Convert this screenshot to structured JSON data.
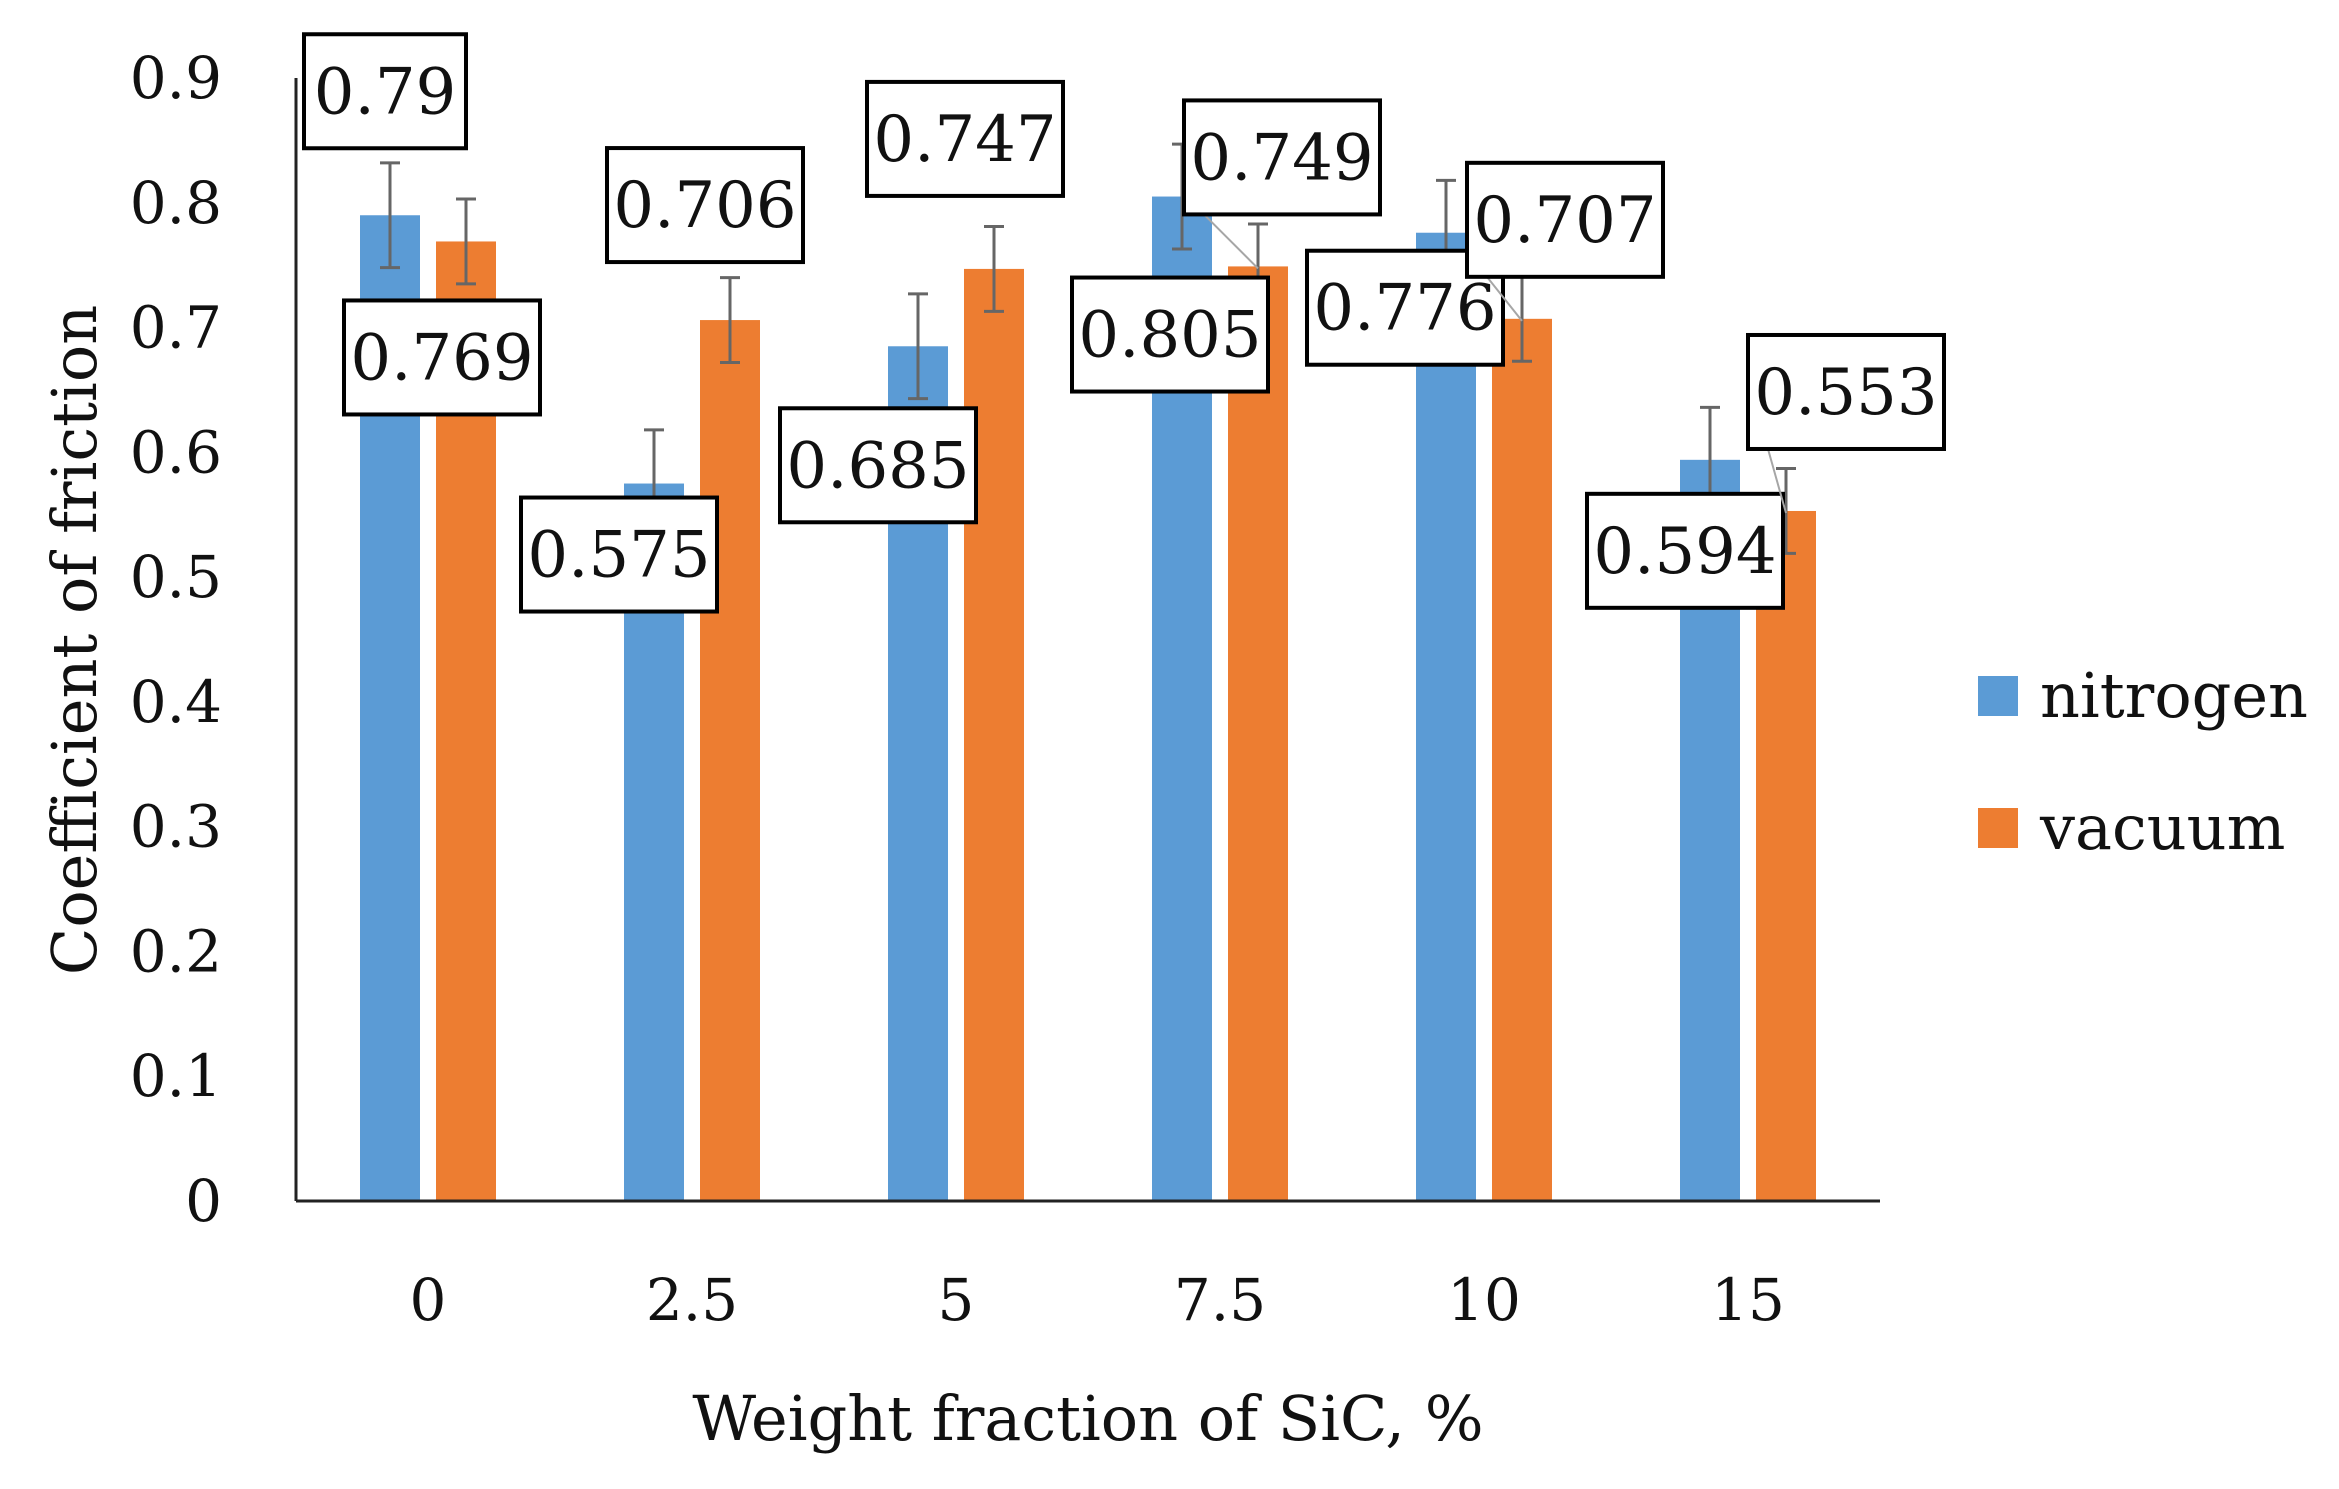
{
  "chart_data": {
    "type": "bar",
    "title": "",
    "xlabel": "Weight fraction of SiC, %",
    "ylabel": "Coefficient of friction",
    "ylim": [
      0,
      0.9
    ],
    "yticks": [
      "0",
      "0.1",
      "0.2",
      "0.3",
      "0.4",
      "0.5",
      "0.6",
      "0.7",
      "0.8",
      "0.9"
    ],
    "categories": [
      "0",
      "2.5",
      "5",
      "7.5",
      "10",
      "15"
    ],
    "grid": false,
    "legend_position": "right",
    "series": [
      {
        "name": "nitrogen",
        "color": "#5b9bd5",
        "values": [
          0.79,
          0.575,
          0.685,
          0.805,
          0.776,
          0.594
        ],
        "labels": [
          "0.79",
          "0.575",
          "0.685",
          "0.805",
          "0.776",
          "0.594"
        ],
        "error": [
          0.042,
          0.043,
          0.042,
          0.042,
          0.042,
          0.042
        ]
      },
      {
        "name": "vacuum",
        "color": "#ed7d31",
        "values": [
          0.769,
          0.706,
          0.747,
          0.749,
          0.707,
          0.553
        ],
        "labels": [
          "0.769",
          "0.706",
          "0.747",
          "0.749",
          "0.707",
          "0.553"
        ],
        "error": [
          0.034,
          0.034,
          0.034,
          0.034,
          0.034,
          0.034
        ]
      }
    ]
  }
}
